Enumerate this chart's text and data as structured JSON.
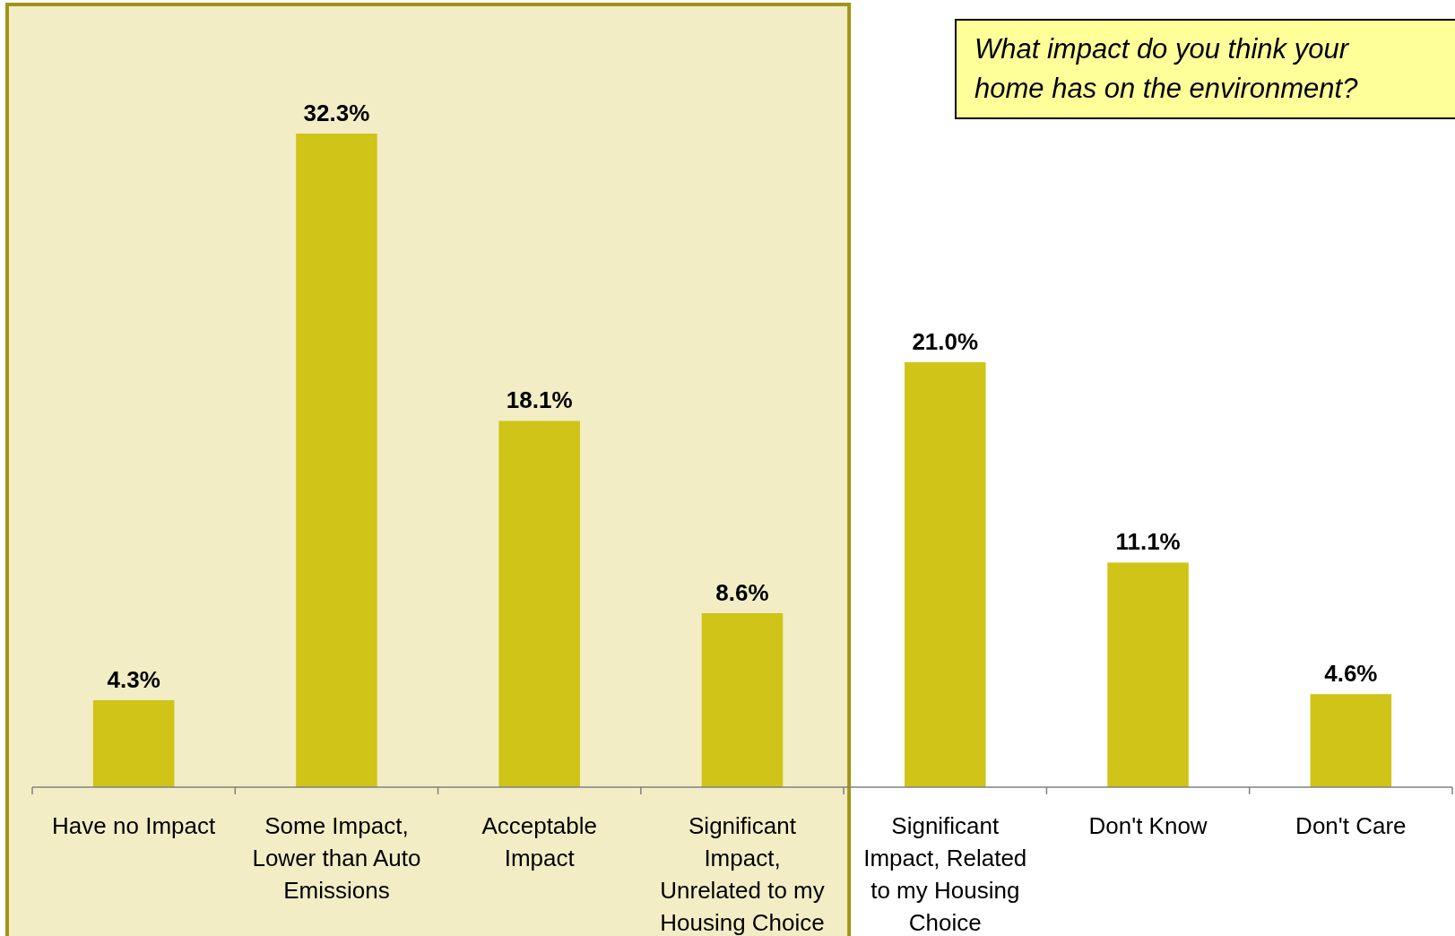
{
  "chart_data": {
    "type": "bar",
    "title": "What impact do you think your home has on the environment?",
    "categories": [
      "Have no Impact",
      "Some Impact, Lower than Auto Emissions",
      "Acceptable Impact",
      "Significant Impact, Unrelated to my Housing Choice",
      "Significant Impact, Related to my Housing Choice",
      "Don't Know",
      "Don't Care"
    ],
    "values": [
      4.3,
      32.3,
      18.1,
      8.6,
      21.0,
      11.1,
      4.6
    ],
    "value_labels": [
      "4.3%",
      "32.3%",
      "18.1%",
      "8.6%",
      "21.0%",
      "11.1%",
      "4.6%"
    ],
    "color": "#cfc417",
    "bands": [
      {
        "axis": "x",
        "from": "Have no Impact",
        "to": "Significant Impact, Unrelated to my Housing Choice",
        "color": "#f2edc4"
      }
    ]
  }
}
